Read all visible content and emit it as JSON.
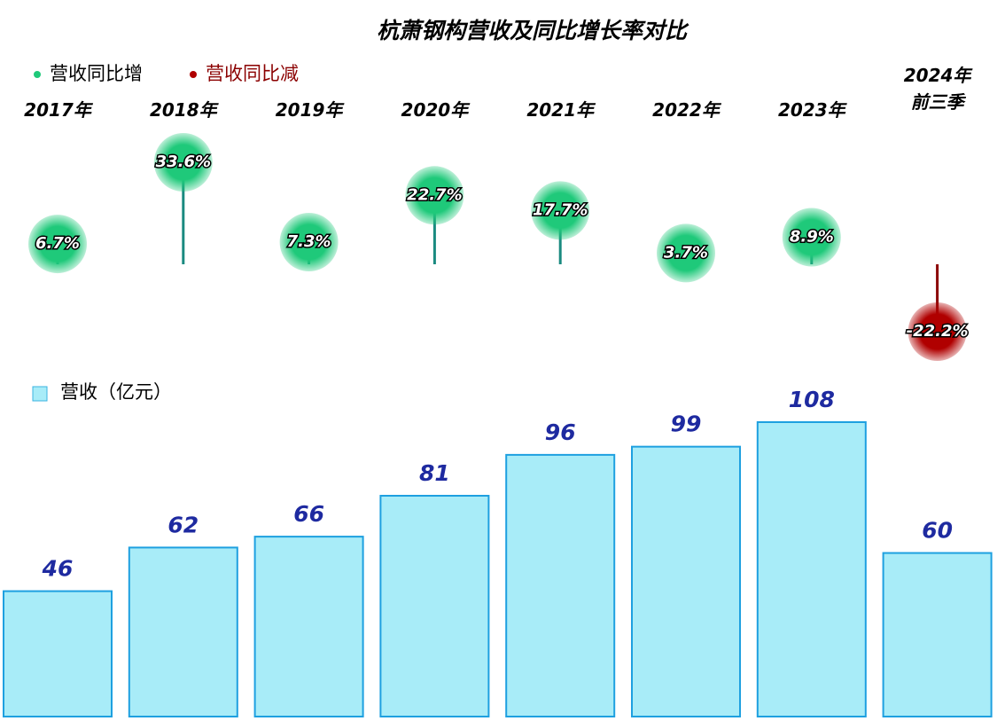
{
  "chart_data": [
    {
      "type": "lollipop",
      "title": "杭萧钢构营收及同比增长率对比",
      "categories": [
        "2017年",
        "2018年",
        "2019年",
        "2020年",
        "2021年",
        "2022年",
        "2023年",
        "2024年\n前三季"
      ],
      "series": [
        {
          "name": "营收同比增",
          "color": "#1fc97a",
          "values": [
            6.7,
            33.6,
            7.3,
            22.7,
            17.7,
            3.7,
            8.9,
            null
          ],
          "value_labels": [
            "6.7%",
            "33.6%",
            "7.3%",
            "22.7%",
            "17.7%",
            "3.7%",
            "8.9%",
            null
          ]
        },
        {
          "name": "营收同比减",
          "color": "#b00000",
          "values": [
            null,
            null,
            null,
            null,
            null,
            null,
            null,
            -22.2
          ],
          "value_labels": [
            null,
            null,
            null,
            null,
            null,
            null,
            null,
            "-22.2%"
          ]
        }
      ]
    },
    {
      "type": "bar",
      "series": [
        {
          "name": "营收（亿元）",
          "color": "#a8ecf8",
          "values": [
            46,
            62,
            66,
            81,
            96,
            99,
            108,
            60
          ]
        }
      ]
    }
  ]
}
